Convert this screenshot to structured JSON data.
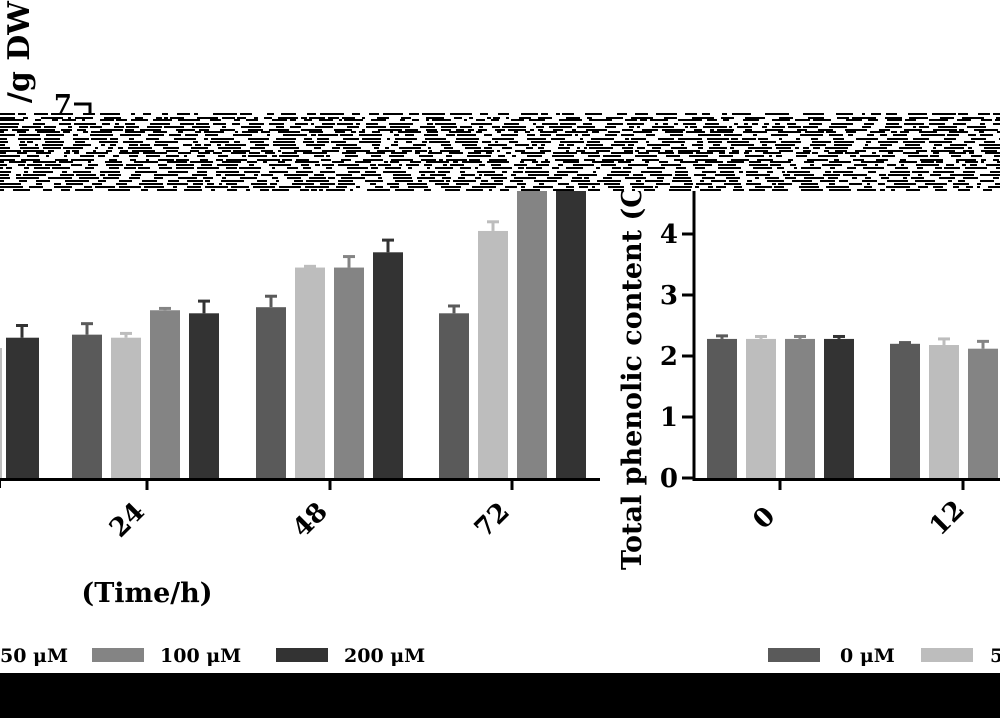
{
  "chart_data": [
    {
      "type": "bar",
      "categories": [
        "24",
        "48",
        "72"
      ],
      "series": [
        {
          "name": "0 μM",
          "color": "#5a5a5a",
          "values": [
            2.35,
            2.8,
            2.7
          ],
          "errors": [
            0.18,
            0.18,
            0.12
          ]
        },
        {
          "name": "50 μM",
          "color": "#bdbdbd",
          "values": [
            2.3,
            3.45,
            4.05
          ],
          "errors": [
            0.07,
            0.02,
            0.15
          ]
        },
        {
          "name": "100 μM",
          "color": "#848484",
          "values": [
            2.75,
            3.45,
            5.2
          ],
          "errors": [
            0.03,
            0.18,
            0.1
          ]
        },
        {
          "name": "200 μM",
          "color": "#333333",
          "values": [
            2.7,
            3.7,
            5.2
          ],
          "errors": [
            0.2,
            0.2,
            0.1
          ]
        }
      ],
      "partial_bars": [
        {
          "series": "200 μM",
          "value": 2.3,
          "error": 0.2
        }
      ],
      "ylabel_fragment": "/g DW)",
      "ytick_top": "7",
      "xlabel": "(Time/h)",
      "legend_items": [
        "50 μM",
        "100 μM",
        "200 μM"
      ],
      "ylim": [
        0,
        7
      ]
    },
    {
      "type": "bar",
      "categories": [
        "0",
        "12"
      ],
      "series": [
        {
          "name": "0 μM",
          "color": "#5a5a5a",
          "values": [
            2.28,
            2.2
          ],
          "errors": [
            0.05,
            0.02
          ]
        },
        {
          "name": "50 μM",
          "color": "#bdbdbd",
          "values": [
            2.28,
            2.18
          ],
          "errors": [
            0.04,
            0.1
          ]
        },
        {
          "name": "100 μM",
          "color": "#848484",
          "values": [
            2.28,
            2.12
          ],
          "errors": [
            0.04,
            0.12
          ]
        },
        {
          "name": "200 μM",
          "color": "#333333",
          "values": [
            2.28,
            2.1
          ],
          "errors": [
            0.04,
            0.1
          ]
        }
      ],
      "ylabel": "Total phenolic content (C",
      "yticks": [
        "0",
        "1",
        "2",
        "3",
        "4"
      ],
      "legend_items": [
        "0 μM",
        "5"
      ],
      "ylim": [
        0,
        7
      ]
    }
  ]
}
